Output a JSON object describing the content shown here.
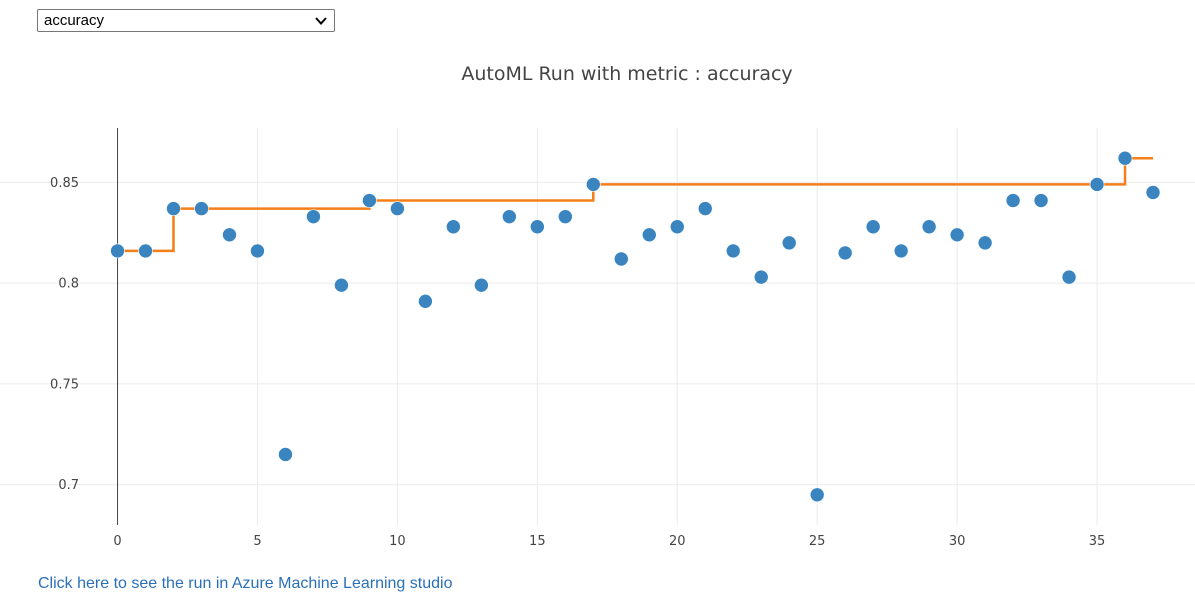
{
  "metric_select": {
    "value": "accuracy",
    "icon": "chevron-down-icon"
  },
  "link": {
    "label": "Click here to see the run in Azure Machine Learning studio"
  },
  "colors": {
    "points": "#3a85c0",
    "best_line": "#f47e17",
    "grid": "#ebebeb",
    "axis_text": "#444444",
    "title_text": "#444444",
    "link": "#2a70b8"
  },
  "chart_data": {
    "type": "scatter",
    "title": "AutoML Run with metric : accuracy",
    "xlabel": "",
    "ylabel": "",
    "xlim": [
      -4.2,
      38.5
    ],
    "ylim": [
      0.68,
      0.877
    ],
    "x_ticks": [
      0,
      5,
      10,
      15,
      20,
      25,
      30,
      35
    ],
    "y_ticks": [
      0.7,
      0.75,
      0.8,
      0.85
    ],
    "grid": true,
    "legend": "none",
    "series": [
      {
        "type": "scatter",
        "x": [
          0,
          1,
          2,
          3,
          4,
          5,
          6,
          7,
          8,
          9,
          10,
          11,
          12,
          13,
          14,
          15,
          16,
          17,
          18,
          19,
          20,
          21,
          22,
          23,
          24,
          25,
          26,
          27,
          28,
          29,
          30,
          31,
          32,
          33,
          34,
          35,
          36,
          37
        ],
        "y": [
          0.816,
          0.816,
          0.837,
          0.837,
          0.824,
          0.816,
          0.715,
          0.833,
          0.799,
          0.841,
          0.837,
          0.791,
          0.828,
          0.799,
          0.833,
          0.828,
          0.833,
          0.849,
          0.812,
          0.824,
          0.828,
          0.837,
          0.816,
          0.803,
          0.82,
          0.695,
          0.815,
          0.828,
          0.816,
          0.828,
          0.824,
          0.82,
          0.841,
          0.841,
          0.803,
          0.849,
          0.862,
          0.845
        ]
      },
      {
        "type": "step-line",
        "x": [
          0,
          1,
          2,
          3,
          4,
          5,
          6,
          7,
          8,
          9,
          10,
          11,
          12,
          13,
          14,
          15,
          16,
          17,
          18,
          19,
          20,
          21,
          22,
          23,
          24,
          25,
          26,
          27,
          28,
          29,
          30,
          31,
          32,
          33,
          34,
          35,
          36,
          37
        ],
        "y": [
          0.816,
          0.816,
          0.837,
          0.837,
          0.837,
          0.837,
          0.837,
          0.837,
          0.837,
          0.841,
          0.841,
          0.841,
          0.841,
          0.841,
          0.841,
          0.841,
          0.841,
          0.849,
          0.849,
          0.849,
          0.849,
          0.849,
          0.849,
          0.849,
          0.849,
          0.849,
          0.849,
          0.849,
          0.849,
          0.849,
          0.849,
          0.849,
          0.849,
          0.849,
          0.849,
          0.849,
          0.862,
          0.862
        ]
      }
    ]
  }
}
